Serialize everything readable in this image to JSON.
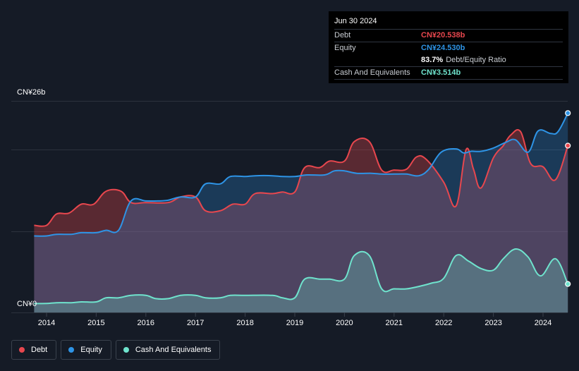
{
  "tooltip": {
    "date": "Jun 30 2024",
    "debt_label": "Debt",
    "debt_value": "CN¥20.538b",
    "equity_label": "Equity",
    "equity_value": "CN¥24.530b",
    "ratio_value": "83.7%",
    "ratio_label": "Debt/Equity Ratio",
    "cash_label": "Cash And Equivalents",
    "cash_value": "CN¥3.514b"
  },
  "axis": {
    "y_top_label": "CN¥26b",
    "y_bottom_label": "CN¥0"
  },
  "legend": {
    "debt": "Debt",
    "equity": "Equity",
    "cash": "Cash And Equivalents"
  },
  "colors": {
    "debt": "#e8474e",
    "equity": "#2e94e6",
    "cash": "#6fe3cd",
    "background": "#151b26"
  },
  "chart_data": {
    "type": "area",
    "ylim": [
      0,
      26
    ],
    "y_unit": "CN¥ billions",
    "x_ticks": [
      "2014",
      "2015",
      "2016",
      "2017",
      "2018",
      "2019",
      "2020",
      "2021",
      "2022",
      "2023",
      "2024"
    ],
    "series": [
      {
        "name": "Debt",
        "points": [
          [
            2013.75,
            10.7
          ],
          [
            2014.0,
            10.7
          ],
          [
            2014.2,
            12.1
          ],
          [
            2014.45,
            12.2
          ],
          [
            2014.7,
            13.3
          ],
          [
            2014.95,
            13.3
          ],
          [
            2015.2,
            14.9
          ],
          [
            2015.5,
            14.9
          ],
          [
            2015.7,
            13.5
          ],
          [
            2016.0,
            13.5
          ],
          [
            2016.45,
            13.5
          ],
          [
            2016.7,
            14.2
          ],
          [
            2017.0,
            14.2
          ],
          [
            2017.2,
            12.5
          ],
          [
            2017.5,
            12.5
          ],
          [
            2017.75,
            13.3
          ],
          [
            2018.0,
            13.3
          ],
          [
            2018.2,
            14.6
          ],
          [
            2018.55,
            14.6
          ],
          [
            2018.75,
            14.8
          ],
          [
            2019.0,
            14.8
          ],
          [
            2019.2,
            17.8
          ],
          [
            2019.5,
            17.8
          ],
          [
            2019.7,
            18.6
          ],
          [
            2020.0,
            18.6
          ],
          [
            2020.2,
            21.0
          ],
          [
            2020.5,
            21.0
          ],
          [
            2020.75,
            17.5
          ],
          [
            2021.0,
            17.5
          ],
          [
            2021.25,
            17.6
          ],
          [
            2021.45,
            19.1
          ],
          [
            2021.65,
            18.8
          ],
          [
            2022.0,
            16.0
          ],
          [
            2022.25,
            13.1
          ],
          [
            2022.45,
            20.0
          ],
          [
            2022.6,
            17.6
          ],
          [
            2022.75,
            15.3
          ],
          [
            2023.0,
            19.0
          ],
          [
            2023.2,
            20.5
          ],
          [
            2023.35,
            21.8
          ],
          [
            2023.55,
            22.2
          ],
          [
            2023.75,
            18.3
          ],
          [
            2024.0,
            17.9
          ],
          [
            2024.25,
            16.3
          ],
          [
            2024.5,
            20.5
          ]
        ]
      },
      {
        "name": "Equity",
        "points": [
          [
            2013.75,
            9.4
          ],
          [
            2014.0,
            9.4
          ],
          [
            2014.2,
            9.6
          ],
          [
            2014.5,
            9.6
          ],
          [
            2014.7,
            9.8
          ],
          [
            2015.0,
            9.8
          ],
          [
            2015.2,
            10.1
          ],
          [
            2015.45,
            10.1
          ],
          [
            2015.7,
            13.7
          ],
          [
            2016.0,
            13.7
          ],
          [
            2016.25,
            13.7
          ],
          [
            2016.45,
            13.8
          ],
          [
            2016.7,
            14.2
          ],
          [
            2017.0,
            14.2
          ],
          [
            2017.2,
            15.8
          ],
          [
            2017.5,
            15.8
          ],
          [
            2017.7,
            16.7
          ],
          [
            2018.0,
            16.7
          ],
          [
            2018.2,
            16.8
          ],
          [
            2018.55,
            16.8
          ],
          [
            2018.75,
            16.7
          ],
          [
            2019.0,
            16.7
          ],
          [
            2019.25,
            16.9
          ],
          [
            2019.6,
            16.9
          ],
          [
            2019.8,
            17.4
          ],
          [
            2020.0,
            17.4
          ],
          [
            2020.25,
            17.1
          ],
          [
            2020.55,
            17.1
          ],
          [
            2020.75,
            17.0
          ],
          [
            2021.0,
            17.0
          ],
          [
            2021.25,
            17.0
          ],
          [
            2021.5,
            16.8
          ],
          [
            2021.7,
            17.6
          ],
          [
            2021.95,
            19.7
          ],
          [
            2022.25,
            20.1
          ],
          [
            2022.4,
            19.6
          ],
          [
            2022.55,
            19.8
          ],
          [
            2022.75,
            19.8
          ],
          [
            2023.0,
            20.2
          ],
          [
            2023.25,
            20.9
          ],
          [
            2023.45,
            21.2
          ],
          [
            2023.7,
            19.7
          ],
          [
            2023.9,
            22.3
          ],
          [
            2024.15,
            22.0
          ],
          [
            2024.3,
            22.2
          ],
          [
            2024.5,
            24.5
          ]
        ]
      },
      {
        "name": "Cash And Equivalents",
        "points": [
          [
            2013.75,
            1.1
          ],
          [
            2014.0,
            1.1
          ],
          [
            2014.2,
            1.2
          ],
          [
            2014.5,
            1.2
          ],
          [
            2014.7,
            1.3
          ],
          [
            2015.0,
            1.3
          ],
          [
            2015.2,
            1.8
          ],
          [
            2015.45,
            1.8
          ],
          [
            2015.7,
            2.1
          ],
          [
            2016.0,
            2.1
          ],
          [
            2016.2,
            1.7
          ],
          [
            2016.45,
            1.7
          ],
          [
            2016.7,
            2.1
          ],
          [
            2017.0,
            2.1
          ],
          [
            2017.2,
            1.8
          ],
          [
            2017.5,
            1.8
          ],
          [
            2017.7,
            2.1
          ],
          [
            2018.0,
            2.1
          ],
          [
            2018.55,
            2.1
          ],
          [
            2018.75,
            1.8
          ],
          [
            2019.0,
            1.8
          ],
          [
            2019.2,
            4.1
          ],
          [
            2019.5,
            4.1
          ],
          [
            2019.7,
            4.1
          ],
          [
            2020.0,
            4.1
          ],
          [
            2020.2,
            7.0
          ],
          [
            2020.5,
            7.0
          ],
          [
            2020.75,
            2.9
          ],
          [
            2021.0,
            2.9
          ],
          [
            2021.25,
            2.9
          ],
          [
            2021.5,
            3.2
          ],
          [
            2021.75,
            3.6
          ],
          [
            2022.0,
            4.2
          ],
          [
            2022.25,
            7.0
          ],
          [
            2022.5,
            6.3
          ],
          [
            2022.75,
            5.4
          ],
          [
            2023.0,
            5.2
          ],
          [
            2023.2,
            6.6
          ],
          [
            2023.45,
            7.8
          ],
          [
            2023.7,
            6.8
          ],
          [
            2023.95,
            4.5
          ],
          [
            2024.25,
            6.6
          ],
          [
            2024.5,
            3.5
          ]
        ]
      }
    ]
  }
}
